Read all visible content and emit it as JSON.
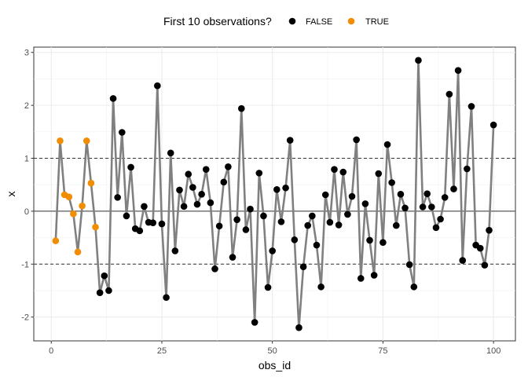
{
  "chart_data": {
    "type": "line",
    "xlabel": "obs_id",
    "ylabel": "x",
    "xlim": [
      -3.95,
      104.95
    ],
    "ylim": [
      -2.45,
      3.1
    ],
    "x_ticks": [
      0,
      25,
      50,
      75,
      100
    ],
    "y_ticks": [
      -2,
      -1,
      0,
      1,
      2,
      3
    ],
    "grid": true,
    "reference_lines": {
      "solid": [
        0
      ],
      "dashed": [
        -1,
        1
      ]
    },
    "line_color": "#808080",
    "legend": {
      "title": "First 10 observations?",
      "position": "top",
      "entries": [
        {
          "label": "FALSE",
          "color": "#000000"
        },
        {
          "label": "TRUE",
          "color": "#f28c00"
        }
      ]
    },
    "x": [
      1,
      2,
      3,
      4,
      5,
      6,
      7,
      8,
      9,
      10,
      11,
      12,
      13,
      14,
      15,
      16,
      17,
      18,
      19,
      20,
      21,
      22,
      23,
      24,
      25,
      26,
      27,
      28,
      29,
      30,
      31,
      32,
      33,
      34,
      35,
      36,
      37,
      38,
      39,
      40,
      41,
      42,
      43,
      44,
      45,
      46,
      47,
      48,
      49,
      50,
      51,
      52,
      53,
      54,
      55,
      56,
      57,
      58,
      59,
      60,
      61,
      62,
      63,
      64,
      65,
      66,
      67,
      68,
      69,
      70,
      71,
      72,
      73,
      74,
      75,
      76,
      77,
      78,
      79,
      80,
      81,
      82,
      83,
      84,
      85,
      86,
      87,
      88,
      89,
      90,
      91,
      92,
      93,
      94,
      95,
      96,
      97,
      98,
      99,
      100
    ],
    "y": [
      -0.56,
      1.33,
      0.31,
      0.27,
      -0.05,
      -0.77,
      0.1,
      1.33,
      0.53,
      -0.3,
      -1.54,
      -1.22,
      -1.5,
      2.13,
      0.26,
      1.49,
      -0.09,
      0.83,
      -0.33,
      -0.37,
      0.09,
      -0.21,
      -0.22,
      2.37,
      -0.24,
      -1.63,
      1.1,
      -0.75,
      0.4,
      0.09,
      0.7,
      0.45,
      0.13,
      0.32,
      0.79,
      0.16,
      -1.09,
      -0.28,
      0.55,
      0.84,
      -0.87,
      -0.16,
      1.94,
      -0.35,
      0.04,
      -2.1,
      0.72,
      -0.09,
      -1.44,
      -0.75,
      0.41,
      -0.2,
      0.44,
      1.34,
      -0.54,
      -2.2,
      -1.05,
      -0.27,
      -0.09,
      -0.64,
      -1.43,
      0.31,
      -0.21,
      0.79,
      -0.26,
      0.74,
      -0.06,
      0.28,
      1.35,
      -1.27,
      0.14,
      -0.55,
      -1.21,
      0.71,
      -0.59,
      1.26,
      0.54,
      -0.27,
      0.32,
      0.06,
      -1.01,
      -1.43,
      2.85,
      0.08,
      0.33,
      0.08,
      -0.31,
      -0.15,
      0.26,
      2.21,
      0.42,
      2.66,
      -0.93,
      0.8,
      1.98,
      -0.64,
      -0.7,
      -1.02,
      -0.36,
      1.63
    ],
    "highlight_first_n": 10
  }
}
